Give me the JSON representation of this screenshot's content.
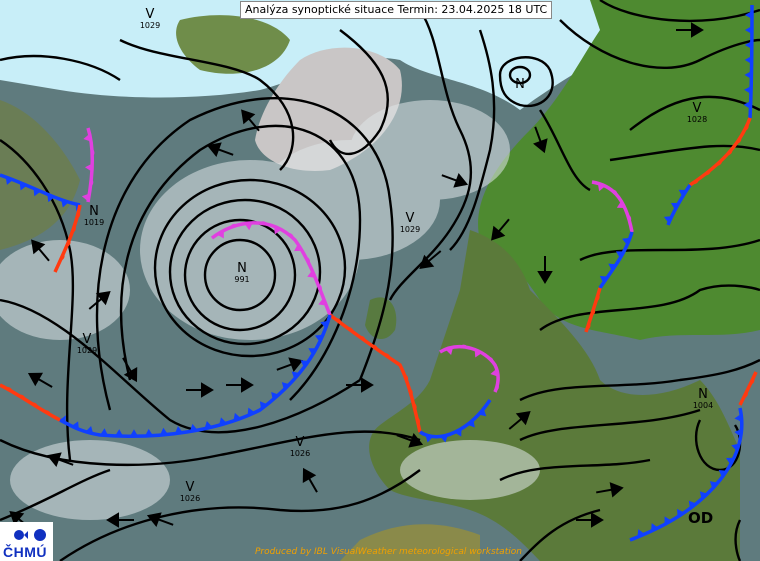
{
  "header": {
    "title": "Analýza synoptické situace Termin: 23.04.2025 18 UTC"
  },
  "footer": {
    "credit": "Produced by IBL VisualWeather meteorological workstation"
  },
  "logo": {
    "text": "ČHMÚ"
  },
  "pressure_centers": [
    {
      "type": "V",
      "value": "1029"
    },
    {
      "type": "N",
      "value": "1019"
    },
    {
      "type": "N",
      "value": "991"
    },
    {
      "type": "V",
      "value": "1029"
    },
    {
      "type": "V",
      "value": "1028"
    },
    {
      "type": "N",
      "value": "1004"
    },
    {
      "type": "V",
      "value": "1029"
    },
    {
      "type": "V",
      "value": "1026"
    },
    {
      "type": "V",
      "value": "1026"
    },
    {
      "type": "N",
      "value": ""
    }
  ],
  "occlusion_label": "OD",
  "colors": {
    "cold_front": "#1040ff",
    "warm_front": "#ff3a10",
    "occluded_front": "#e040e0",
    "isobar": "#000000",
    "sea": "#5f7b7e",
    "ice": "#c8eef8",
    "land": "#4e8a30"
  }
}
